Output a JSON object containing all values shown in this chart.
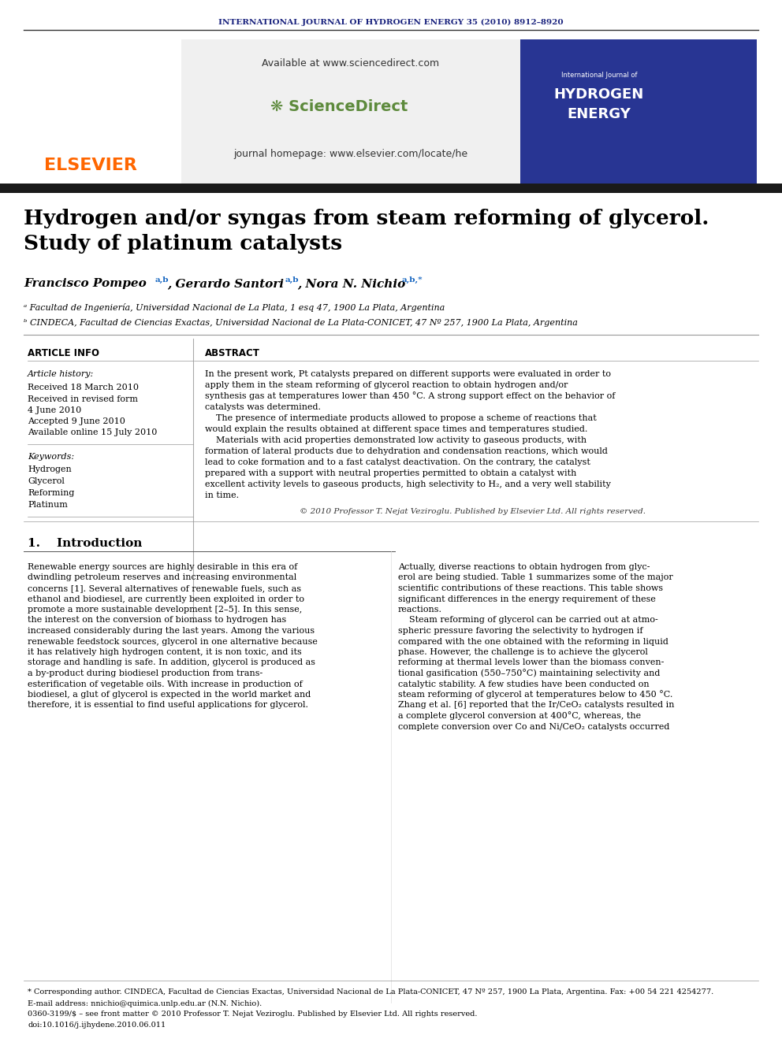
{
  "journal_header": "INTERNATIONAL JOURNAL OF HYDROGEN ENERGY 35 (2010) 8912–8920",
  "journal_header_color": "#1a237e",
  "available_text": "Available at www.sciencedirect.com",
  "journal_homepage": "journal homepage: www.elsevier.com/locate/he",
  "elsevier_color": "#FF6600",
  "paper_title_line1": "Hydrogen and/or syngas from steam reforming of glycerol.",
  "paper_title_line2": "Study of platinum catalysts",
  "authors": "Francisco Pompeo ᵃʰ， Gerardo Santori ᵃʰ， Nora N. Nichio ᵃʰ*",
  "affiliation_a": "ᵃ Facultad de Ingeniería, Universidad Nacional de La Plata, 1 esq 47, 1900 La Plata, Argentina",
  "affiliation_b": "ᵇ CINDECA, Facultad de Ciencias Exactas, Universidad Nacional de La Plata-CONICET, 47 Nº 257, 1900 La Plata, Argentina",
  "article_info_label": "ARTICLE INFO",
  "abstract_label": "ABSTRACT",
  "article_history_label": "Article history:",
  "received_label": "Received 18 March 2010",
  "received_revised_label": "Received in revised form",
  "date_revised": "4 June 2010",
  "accepted_label": "Accepted 9 June 2010",
  "available_online_label": "Available online 15 July 2010",
  "keywords_label": "Keywords:",
  "keyword1": "Hydrogen",
  "keyword2": "Glycerol",
  "keyword3": "Reforming",
  "keyword4": "Platinum",
  "abstract_text": "In the present work, Pt catalysts prepared on different supports were evaluated in order to apply them in the steam reforming of glycerol reaction to obtain hydrogen and/or synthesis gas at temperatures lower than 450 °C. A strong support effect on the behavior of catalysts was determined.\n    The presence of intermediate products allowed to propose a scheme of reactions that would explain the results obtained at different space times and temperatures studied.\n    Materials with acid properties demonstrated low activity to gaseous products, with formation of lateral products due to dehydration and condensation reactions, which would lead to coke formation and to a fast catalyst deactivation. On the contrary, the catalyst prepared with a support with neutral properties permitted to obtain a catalyst with excellent activity levels to gaseous products, high selectivity to H₂, and a very well stability in time.",
  "copyright_text": "© 2010 Professor T. Nejat Veziroglu. Published by Elsevier Ltd. All rights reserved.",
  "section1_title": "1.    Introduction",
  "intro_col1": "Renewable energy sources are highly desirable in this era of dwindling petroleum reserves and increasing environmental concerns [1]. Several alternatives of renewable fuels, such as ethanol and biodiesel, are currently been exploited in order to promote a more sustainable development [2–5]. In this sense, the interest on the conversion of biomass to hydrogen has increased considerably during the last years. Among the various renewable feedstock sources, glycerol in one alternative because it has relatively high hydrogen content, it is non toxic, and its storage and handling is safe. In addition, glycerol is produced as a by-product during biodiesel production from trans-esterification of vegetable oils. With increase in production of biodiesel, a glut of glycerol is expected in the world market and therefore, it is essential to find useful applications for glycerol.",
  "intro_col2": "Actually, diverse reactions to obtain hydrogen from glycerol are being studied. Table 1 summarizes some of the major scientific contributions of these reactions. This table shows significant differences in the energy requirement of these reactions.\n    Steam reforming of glycerol can be carried out at atmospheric pressure favoring the selectivity to hydrogen if compared with the one obtained with the reforming in liquid phase. However, the challenge is to achieve the glycerol reforming at thermal levels lower than the biomass conventional gasification (550–750°C) maintaining selectivity and catalytic stability. A few studies have been conducted on steam reforming of glycerol at temperatures below to 450 °C. Zhang et al. [6] reported that the Ir/CeO₂ catalysts resulted in a complete glycerol conversion at 400°C, whereas, the complete conversion over Co and Ni/CeO₂ catalysts occurred",
  "footnote_star": "* Corresponding author. CINDECA, Facultad de Ciencias Exactas, Universidad Nacional de La Plata-CONICET, 47 Nº 257, 1900 La Plata, Argentina. Fax: +00 54 221 4254277.",
  "footnote_email": "E-mail address: nnichio@quimica.unlp.edu.ar (N.N. Nichio).",
  "footnote_issn": "0360-3199/$ – see front matter © 2010 Professor T. Nejat Veziroglu. Published by Elsevier Ltd. All rights reserved.",
  "footnote_doi": "doi:10.1016/j.ijhydene.2010.06.011",
  "bg_color": "#ffffff",
  "header_bg": "#f5f5f5",
  "dark_bar_color": "#1a1a1a",
  "blue_color": "#1a237e",
  "link_color": "#1565c0"
}
